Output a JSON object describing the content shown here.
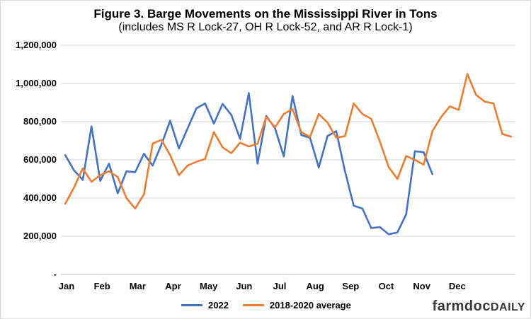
{
  "chart_data": {
    "type": "line",
    "title": "Figure 3. Barge Movements on the Mississippi River in Tons",
    "subtitle": "(includes MS R Lock-27, OH R Lock-52, and AR R Lock-1)",
    "xlabel": "",
    "ylabel": "",
    "ylim": [
      0,
      1200000
    ],
    "y_ticks": [
      0,
      200000,
      400000,
      600000,
      800000,
      1000000,
      1200000
    ],
    "y_tick_labels": [
      "-",
      "200,000",
      "400,000",
      "600,000",
      "800,000",
      "1,000,000",
      "1,200,000"
    ],
    "x_tick_labels": [
      "Jan",
      "Feb",
      "Mar",
      "Apr",
      "May",
      "Jun",
      "Jul",
      "Aug",
      "Sep",
      "Oct",
      "Nov",
      "Dec"
    ],
    "weeks_total": 52,
    "grid": "horizontal",
    "legend_position": "bottom",
    "series": [
      {
        "name": "2022",
        "color": "#4472c4",
        "values": [
          625000,
          545000,
          495000,
          775000,
          490000,
          580000,
          425000,
          540000,
          535000,
          632000,
          570000,
          680000,
          805000,
          660000,
          765000,
          870000,
          895000,
          790000,
          893000,
          835000,
          710000,
          950000,
          580000,
          830000,
          765000,
          618000,
          935000,
          730000,
          715000,
          560000,
          725000,
          750000,
          540000,
          360000,
          345000,
          243000,
          248000,
          210000,
          220000,
          315000,
          645000,
          640000,
          525000
        ]
      },
      {
        "name": "2018-2020 average",
        "color": "#ed7d31",
        "values": [
          370000,
          455000,
          555000,
          485000,
          520000,
          540000,
          510000,
          400000,
          345000,
          420000,
          685000,
          705000,
          625000,
          520000,
          570000,
          590000,
          605000,
          745000,
          665000,
          635000,
          690000,
          670000,
          685000,
          825000,
          770000,
          840000,
          865000,
          745000,
          720000,
          840000,
          795000,
          715000,
          725000,
          895000,
          840000,
          815000,
          695000,
          562000,
          500000,
          620000,
          600000,
          575000,
          750000,
          825000,
          880000,
          862000,
          1050000,
          940000,
          905000,
          895000,
          735000,
          722000
        ]
      }
    ]
  },
  "legend": {
    "items": [
      {
        "label": "2022",
        "color": "#4472c4"
      },
      {
        "label": "2018-2020 average",
        "color": "#ed7d31"
      }
    ]
  },
  "brand": {
    "part1": "farmdoc",
    "part2": "DAILY"
  }
}
